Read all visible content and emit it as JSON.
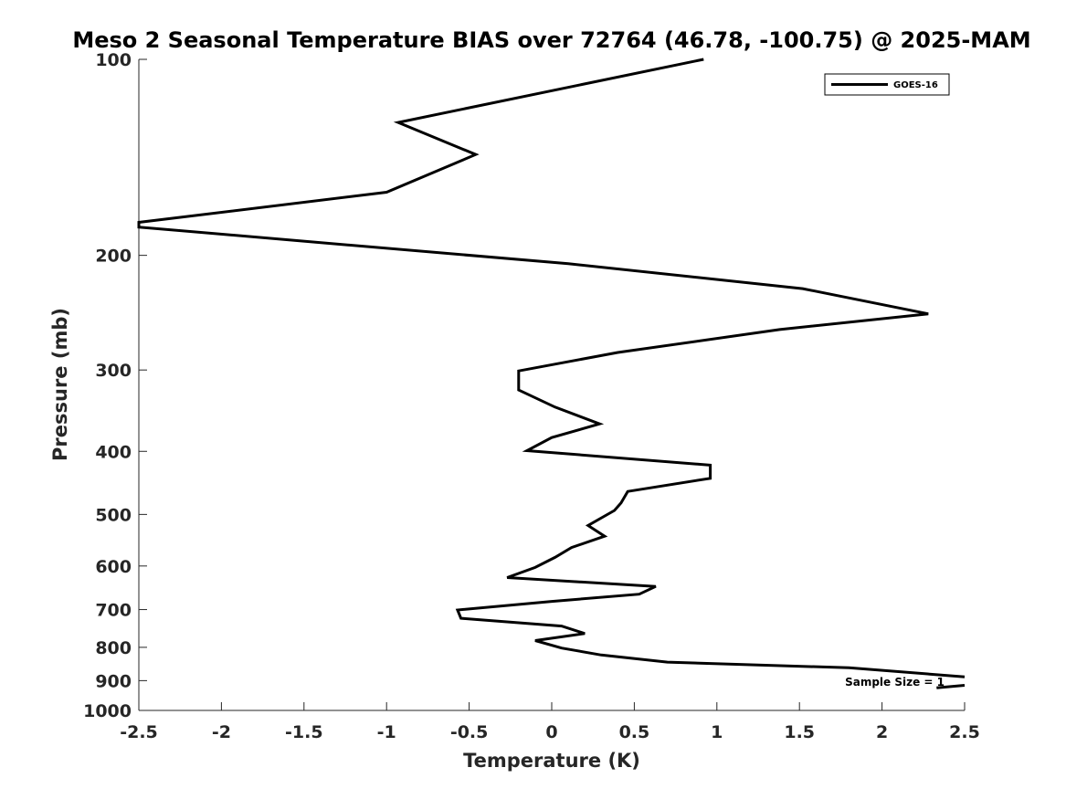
{
  "chart_data": {
    "type": "line",
    "title": "Meso 2 Seasonal Temperature BIAS over 72764 (46.78, -100.75) @ 2025-MAM",
    "xlabel": "Temperature (K)",
    "ylabel": "Pressure (mb)",
    "xlim": [
      -2.5,
      2.5
    ],
    "ylim": [
      1000,
      100
    ],
    "y_scale": "log",
    "y_reversed": true,
    "x_ticks": [
      "-2.5",
      "-2",
      "-1.5",
      "-1",
      "-0.5",
      "0",
      "0.5",
      "1",
      "1.5",
      "2",
      "2.5"
    ],
    "y_ticks": [
      "100",
      "200",
      "300",
      "400",
      "500",
      "600",
      "700",
      "800",
      "900",
      "1000"
    ],
    "grid": false,
    "legend_position": "top-right",
    "annotation": "Sample Size = 1",
    "line_color": "#000000",
    "series": [
      {
        "name": "GOES-16",
        "points": [
          {
            "x": 0.92,
            "y": 100
          },
          {
            "x": -0.93,
            "y": 125
          },
          {
            "x": -0.46,
            "y": 140
          },
          {
            "x": -1.0,
            "y": 160
          },
          {
            "x": -2.5,
            "y": 178
          },
          {
            "x": -2.5,
            "y": 181
          },
          {
            "x": 0.1,
            "y": 206
          },
          {
            "x": 1.52,
            "y": 225
          },
          {
            "x": 2.28,
            "y": 246
          },
          {
            "x": 1.38,
            "y": 260
          },
          {
            "x": 0.4,
            "y": 282
          },
          {
            "x": -0.2,
            "y": 301
          },
          {
            "x": -0.2,
            "y": 322
          },
          {
            "x": 0.02,
            "y": 342
          },
          {
            "x": 0.29,
            "y": 363
          },
          {
            "x": 0.0,
            "y": 381
          },
          {
            "x": -0.15,
            "y": 399
          },
          {
            "x": 0.96,
            "y": 420
          },
          {
            "x": 0.96,
            "y": 440
          },
          {
            "x": 0.46,
            "y": 461
          },
          {
            "x": 0.42,
            "y": 480
          },
          {
            "x": 0.38,
            "y": 493
          },
          {
            "x": 0.22,
            "y": 520
          },
          {
            "x": 0.32,
            "y": 540
          },
          {
            "x": 0.12,
            "y": 562
          },
          {
            "x": 0.02,
            "y": 582
          },
          {
            "x": -0.1,
            "y": 603
          },
          {
            "x": -0.27,
            "y": 625
          },
          {
            "x": 0.63,
            "y": 645
          },
          {
            "x": 0.53,
            "y": 663
          },
          {
            "x": 0.0,
            "y": 680
          },
          {
            "x": -0.57,
            "y": 701
          },
          {
            "x": -0.55,
            "y": 722
          },
          {
            "x": 0.06,
            "y": 742
          },
          {
            "x": 0.2,
            "y": 762
          },
          {
            "x": -0.1,
            "y": 781
          },
          {
            "x": 0.06,
            "y": 802
          },
          {
            "x": 0.3,
            "y": 822
          },
          {
            "x": 0.7,
            "y": 843
          },
          {
            "x": 1.8,
            "y": 860
          },
          {
            "x": 2.5,
            "y": 888
          }
        ]
      },
      {
        "name": "",
        "points": [
          {
            "x": 2.5,
            "y": 915
          },
          {
            "x": 2.33,
            "y": 923
          }
        ]
      }
    ]
  }
}
